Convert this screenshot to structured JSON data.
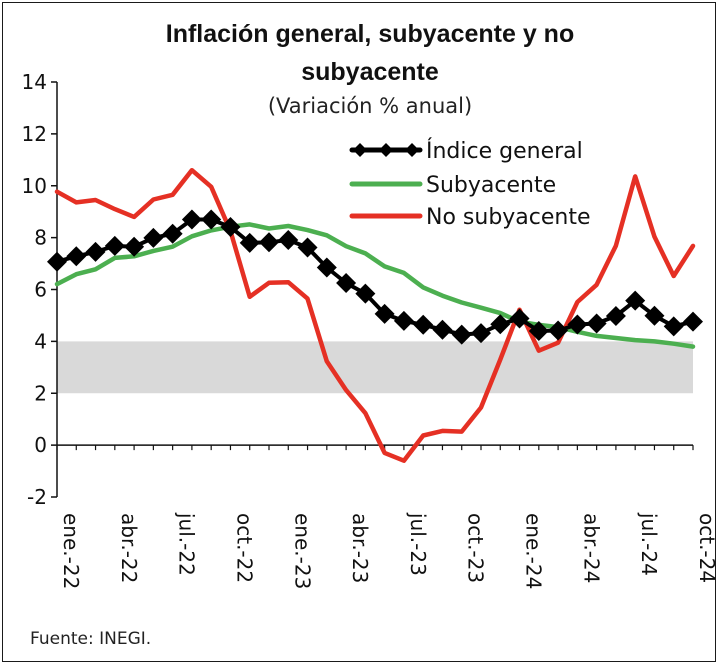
{
  "chart_data": {
    "type": "line",
    "title_line1": "Inflación general, subyacente y no",
    "title_line2": "subyacente",
    "subtitle": "(Variación % anual)",
    "source": "Fuente: INEGI.",
    "ylim": [
      -2,
      14
    ],
    "yticks": [
      "-2",
      "0",
      "2",
      "4",
      "6",
      "8",
      "10",
      "12",
      "14"
    ],
    "target_band": [
      2,
      4
    ],
    "x_tick_labels": [
      "ene.-22",
      "abr.-22",
      "jul.-22",
      "oct.-22",
      "ene.-23",
      "abr.-23",
      "jul.-23",
      "oct.-23",
      "ene.-24",
      "abr.-24",
      "jul.-24",
      "oct.-24"
    ],
    "x": [
      "ene.-22",
      "feb.-22",
      "mar.-22",
      "abr.-22",
      "may.-22",
      "jun.-22",
      "jul.-22",
      "ago.-22",
      "sep.-22",
      "oct.-22",
      "nov.-22",
      "dic.-22",
      "ene.-23",
      "feb.-23",
      "mar.-23",
      "abr.-23",
      "may.-23",
      "jun.-23",
      "jul.-23",
      "ago.-23",
      "sep.-23",
      "oct.-23",
      "nov.-23",
      "dic.-23",
      "ene.-24",
      "feb.-24",
      "mar.-24",
      "abr.-24",
      "may.-24",
      "jun.-24",
      "jul.-24",
      "ago.-24",
      "sep.-24",
      "oct.-24"
    ],
    "series": [
      {
        "name": "Índice general",
        "color": "#000000",
        "marker": "diamond",
        "values": [
          7.07,
          7.28,
          7.45,
          7.68,
          7.65,
          7.99,
          8.15,
          8.7,
          8.7,
          8.41,
          7.8,
          7.82,
          7.91,
          7.62,
          6.85,
          6.25,
          5.84,
          5.06,
          4.79,
          4.64,
          4.45,
          4.26,
          4.32,
          4.66,
          4.88,
          4.4,
          4.42,
          4.65,
          4.69,
          4.98,
          5.57,
          4.99,
          4.58,
          4.76
        ]
      },
      {
        "name": "Subyacente",
        "color": "#4caf50",
        "marker": "none",
        "values": [
          6.21,
          6.59,
          6.78,
          7.22,
          7.28,
          7.49,
          7.65,
          8.05,
          8.28,
          8.42,
          8.51,
          8.35,
          8.45,
          8.29,
          8.09,
          7.67,
          7.39,
          6.89,
          6.64,
          6.08,
          5.76,
          5.5,
          5.3,
          5.09,
          4.76,
          4.64,
          4.55,
          4.37,
          4.21,
          4.13,
          4.05,
          4.0,
          3.91,
          3.8
        ]
      },
      {
        "name": "No subyacente",
        "color": "#e53024",
        "marker": "none",
        "values": [
          9.77,
          9.36,
          9.45,
          9.1,
          8.8,
          9.47,
          9.65,
          10.6,
          9.96,
          8.25,
          5.72,
          6.26,
          6.28,
          5.65,
          3.23,
          2.12,
          1.23,
          -0.3,
          -0.6,
          0.37,
          0.55,
          0.52,
          1.45,
          3.3,
          5.22,
          3.64,
          3.95,
          5.52,
          6.18,
          7.69,
          10.36,
          8.03,
          6.52,
          7.68
        ]
      }
    ],
    "legend_position": "top-right",
    "grid": false
  }
}
